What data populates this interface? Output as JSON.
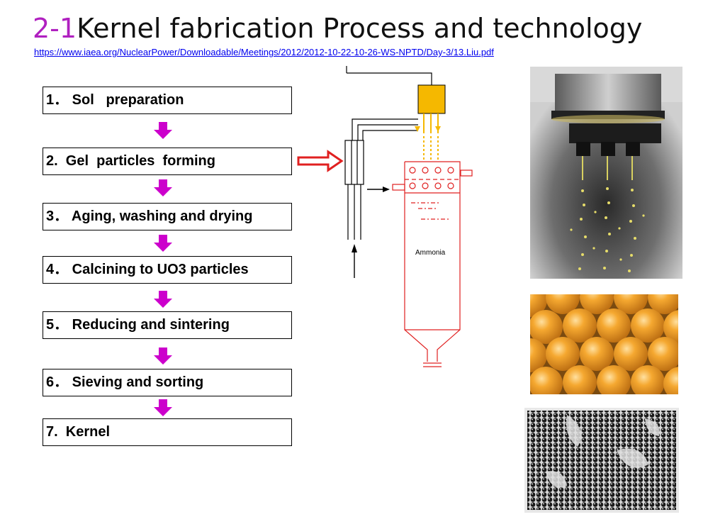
{
  "title": {
    "number": "2-1",
    "text": "Kernel fabrication Process and technology"
  },
  "source_link": "https://www.iaea.org/NuclearPower/Downloadable/Meetings/2012/2012-10-22-10-26-WS-NPTD/Day-3/13.Liu.pdf",
  "steps": [
    {
      "label": "1． Sol   preparation"
    },
    {
      "label": "2.  Gel  particles  forming"
    },
    {
      "label": "3． Aging, washing and drying"
    },
    {
      "label": "4． Calcining to UO3 particles"
    },
    {
      "label": "5． Reducing and sintering"
    },
    {
      "label": "6． Sieving and sorting"
    },
    {
      "label": "7.  Kernel"
    }
  ],
  "diagram": {
    "vessel_label": "Ammonia"
  },
  "colors": {
    "accent": "#cc00cc",
    "vessel": "#e02020",
    "feed_box": "#f5b800",
    "title_number": "#b020c0"
  },
  "photos": [
    {
      "name": "droplet-nozzles-photo"
    },
    {
      "name": "orange-gel-spheres-photo"
    },
    {
      "name": "black-kernels-photo"
    }
  ]
}
